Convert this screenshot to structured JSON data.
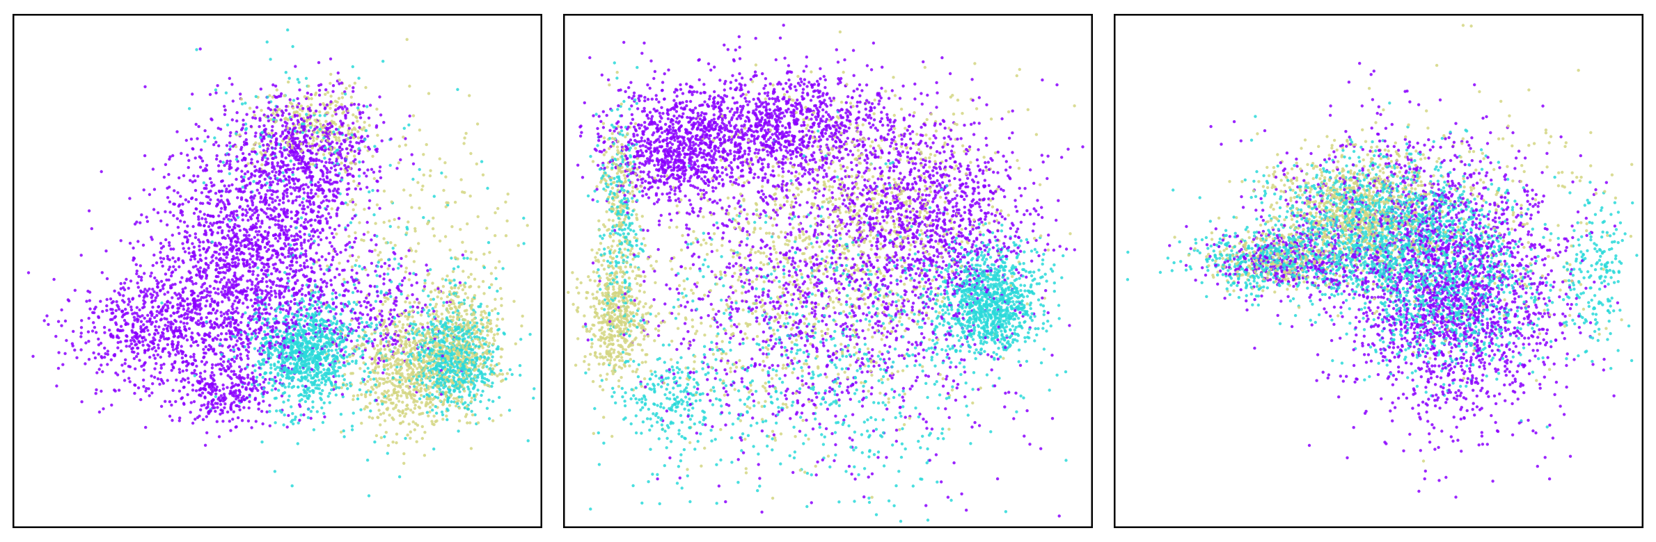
{
  "figure": {
    "panel_count": 3,
    "axis_ticks_shown": false,
    "grid": false,
    "legend": "none",
    "colors": [
      "#8b00ff",
      "#2ad9d9",
      "#d4d683"
    ]
  },
  "chart_data": [
    {
      "type": "scatter",
      "title": "",
      "xlabel": "",
      "ylabel": "",
      "xlim": [
        0,
        100
      ],
      "ylim": [
        0,
        100
      ],
      "grid": false,
      "legend": "none",
      "series": [
        {
          "color": "#8b00ff",
          "clusters": [
            {
              "cx": 45,
              "cy": 52,
              "sx": 10,
              "sy": 12,
              "n": 1800
            },
            {
              "cx": 55,
              "cy": 73,
              "sx": 7,
              "sy": 6,
              "n": 700
            },
            {
              "cx": 28,
              "cy": 38,
              "sx": 9,
              "sy": 6,
              "n": 700
            },
            {
              "cx": 40,
              "cy": 26,
              "sx": 4,
              "sy": 3,
              "n": 220
            },
            {
              "cx": 70,
              "cy": 42,
              "sx": 6,
              "sy": 6,
              "n": 220
            }
          ]
        },
        {
          "color": "#2ad9d9",
          "clusters": [
            {
              "cx": 55,
              "cy": 34,
              "sx": 5,
              "sy": 5,
              "n": 900
            },
            {
              "cx": 84,
              "cy": 33,
              "sx": 4,
              "sy": 5,
              "n": 650
            },
            {
              "cx": 53,
              "cy": 76,
              "sx": 9,
              "sy": 8,
              "n": 130
            },
            {
              "cx": 70,
              "cy": 38,
              "sx": 14,
              "sy": 12,
              "n": 300
            }
          ]
        },
        {
          "color": "#d4d683",
          "clusters": [
            {
              "cx": 75,
              "cy": 30,
              "sx": 5,
              "sy": 6,
              "n": 600
            },
            {
              "cx": 85,
              "cy": 36,
              "sx": 4,
              "sy": 6,
              "n": 450
            },
            {
              "cx": 57,
              "cy": 79,
              "sx": 6,
              "sy": 4,
              "n": 250
            },
            {
              "cx": 75,
              "cy": 55,
              "sx": 10,
              "sy": 13,
              "n": 220
            }
          ]
        }
      ]
    },
    {
      "type": "scatter",
      "title": "",
      "xlabel": "",
      "ylabel": "",
      "xlim": [
        0,
        100
      ],
      "ylim": [
        0,
        100
      ],
      "grid": false,
      "legend": "none",
      "series": [
        {
          "color": "#8b00ff",
          "clusters": [
            {
              "cx": 38,
              "cy": 78,
              "sx": 14,
              "sy": 6,
              "n": 1400
            },
            {
              "cx": 20,
              "cy": 73,
              "sx": 6,
              "sy": 5,
              "n": 600
            },
            {
              "cx": 70,
              "cy": 60,
              "sx": 10,
              "sy": 9,
              "n": 900
            },
            {
              "cx": 50,
              "cy": 45,
              "sx": 18,
              "sy": 16,
              "n": 1300
            }
          ]
        },
        {
          "color": "#2ad9d9",
          "clusters": [
            {
              "cx": 81,
              "cy": 44,
              "sx": 5,
              "sy": 5,
              "n": 1000
            },
            {
              "cx": 50,
              "cy": 35,
              "sx": 18,
              "sy": 16,
              "n": 700
            },
            {
              "cx": 10,
              "cy": 60,
              "sx": 2,
              "sy": 12,
              "n": 250
            },
            {
              "cx": 20,
              "cy": 24,
              "sx": 5,
              "sy": 4,
              "n": 200
            }
          ]
        },
        {
          "color": "#d4d683",
          "clusters": [
            {
              "cx": 9,
              "cy": 41,
              "sx": 3,
              "sy": 6,
              "n": 500
            },
            {
              "cx": 10,
              "cy": 66,
              "sx": 2,
              "sy": 8,
              "n": 200
            },
            {
              "cx": 55,
              "cy": 60,
              "sx": 14,
              "sy": 12,
              "n": 800
            },
            {
              "cx": 40,
              "cy": 40,
              "sx": 16,
              "sy": 14,
              "n": 400
            }
          ]
        }
      ]
    },
    {
      "type": "scatter",
      "title": "",
      "xlabel": "",
      "ylabel": "",
      "xlim": [
        0,
        100
      ],
      "ylim": [
        0,
        100
      ],
      "grid": false,
      "legend": "none",
      "series": [
        {
          "color": "#8b00ff",
          "clusters": [
            {
              "cx": 65,
              "cy": 45,
              "sx": 10,
              "sy": 12,
              "n": 1800
            },
            {
              "cx": 50,
              "cy": 60,
              "sx": 12,
              "sy": 10,
              "n": 600
            },
            {
              "cx": 32,
              "cy": 52,
              "sx": 8,
              "sy": 3,
              "n": 300
            }
          ]
        },
        {
          "color": "#2ad9d9",
          "clusters": [
            {
              "cx": 50,
              "cy": 58,
              "sx": 11,
              "sy": 7,
              "n": 1500
            },
            {
              "cx": 64,
              "cy": 45,
              "sx": 9,
              "sy": 8,
              "n": 800
            },
            {
              "cx": 28,
              "cy": 52,
              "sx": 7,
              "sy": 3,
              "n": 400
            },
            {
              "cx": 92,
              "cy": 50,
              "sx": 3,
              "sy": 8,
              "n": 180
            }
          ]
        },
        {
          "color": "#d4d683",
          "clusters": [
            {
              "cx": 46,
              "cy": 62,
              "sx": 8,
              "sy": 6,
              "n": 900
            },
            {
              "cx": 30,
              "cy": 52,
              "sx": 7,
              "sy": 3,
              "n": 250
            },
            {
              "cx": 70,
              "cy": 60,
              "sx": 14,
              "sy": 14,
              "n": 250
            }
          ]
        }
      ]
    }
  ]
}
